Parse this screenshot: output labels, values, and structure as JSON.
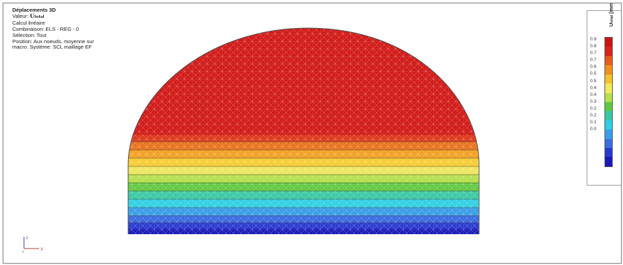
{
  "info": {
    "title": "Déplacements 3D",
    "value_prefix": "Valeur: ",
    "value_symbol": "U",
    "value_subscript": "total",
    "line_calc": "Calcul linéaire",
    "line_combination": "Combinaison: ELS - REG - 0",
    "line_selection": "Sélection: Tout",
    "line_position": "Position: Aux noeuds, moyenne sur",
    "line_system": "macro. Système: SCL maillage EF"
  },
  "legend": {
    "symbol": "U",
    "subscript": "total",
    "unit": " [mm]",
    "labels": [
      "0.9",
      "0.8",
      "0.7",
      "0.7",
      "0.6",
      "0.5",
      "0.5",
      "0.4",
      "0.4",
      "0.3",
      "0.2",
      "0.2",
      "0.1",
      "0.0"
    ],
    "colors": [
      "#cc1414",
      "#d8241a",
      "#e85a1e",
      "#f0901e",
      "#f5c22e",
      "#f2ea5c",
      "#b6e04e",
      "#5dc942",
      "#37c7a6",
      "#2ed0e6",
      "#3a9ee8",
      "#3a6de0",
      "#2a3ad0",
      "#1a1ab8"
    ]
  },
  "axes": {
    "z_label": "z",
    "y_label": "Y",
    "x_label": "X"
  }
}
